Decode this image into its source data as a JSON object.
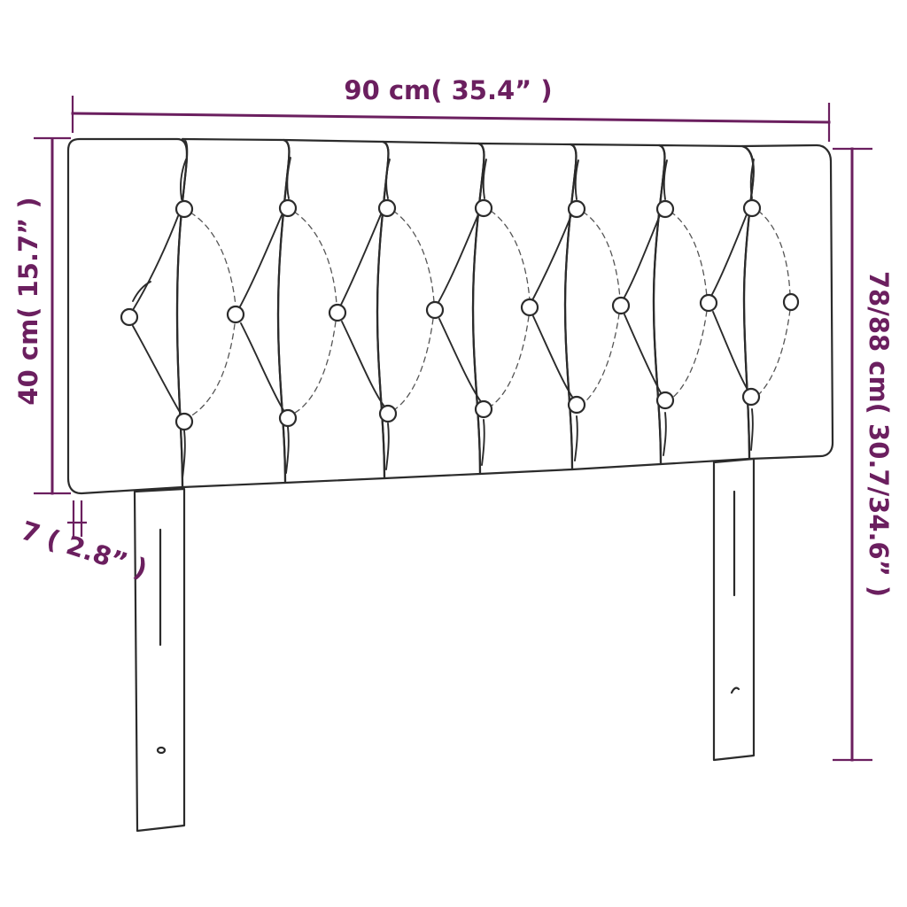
{
  "dimensions": {
    "width_label": "90 cm( 35.4” )",
    "height_label": "40 cm( 15.7” )",
    "total_height_label": "78/88 cm( 30.7/34.6” )",
    "thickness_label": "7 ( 2.8” )"
  },
  "colors": {
    "dimension": "#6b1f5f",
    "outline": "#2b2b2b",
    "background": "#ffffff"
  }
}
